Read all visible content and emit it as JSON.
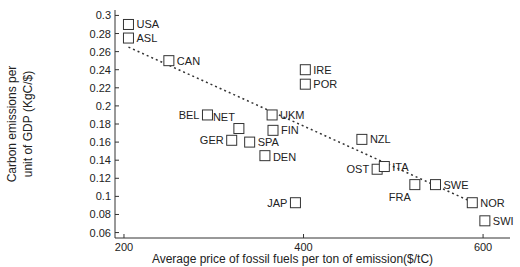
{
  "chart_data": {
    "type": "scatter",
    "xlabel": "Average price of fossil fuels per ton of emission($/tC)",
    "ylabel": [
      "Carbon emissions per",
      "unit of GDP (KgC/$)"
    ],
    "labels": [
      "USA",
      "ASL",
      "CAN",
      "BEL",
      "NET",
      "GER",
      "SPA",
      "DEN",
      "UKM",
      "FIN",
      "IRE",
      "POR",
      "JAP",
      "NZL",
      "OST",
      "ITA",
      "FRA",
      "SWE",
      "NOR",
      "SWI"
    ],
    "x": [
      205,
      205,
      250,
      293,
      328,
      320,
      340,
      357,
      365,
      366,
      402,
      402,
      391,
      465,
      482,
      490,
      524,
      547,
      588,
      602
    ],
    "values": [
      0.29,
      0.275,
      0.25,
      0.19,
      0.175,
      0.162,
      0.16,
      0.145,
      0.19,
      0.173,
      0.24,
      0.224,
      0.093,
      0.163,
      0.13,
      0.133,
      0.113,
      0.113,
      0.093,
      0.073
    ],
    "marker": "square",
    "color": "#333333",
    "trend": {
      "x": [
        205,
        585
      ],
      "values": [
        0.265,
        0.095
      ],
      "line_style": "dotted"
    },
    "xlim": [
      190,
      630
    ],
    "xticks": [
      200,
      400,
      600
    ],
    "ylim": [
      0.054,
      0.306
    ],
    "yticks": [
      0.06,
      0.08,
      0.1,
      0.12,
      0.14,
      0.16,
      0.18,
      0.2,
      0.22,
      0.24,
      0.26,
      0.28,
      0.3
    ],
    "grid": false
  }
}
